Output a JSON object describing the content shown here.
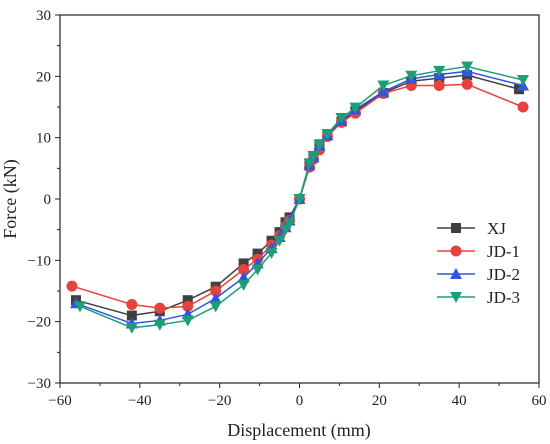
{
  "chart_data": {
    "type": "line",
    "title": "",
    "xlabel": "Displacement (mm)",
    "ylabel": "Force (kN)",
    "xlim": [
      -60,
      60
    ],
    "ylim": [
      -30,
      30
    ],
    "xticks": [
      -60,
      -40,
      -20,
      0,
      20,
      40,
      60
    ],
    "yticks": [
      -30,
      -20,
      -10,
      0,
      10,
      20,
      30
    ],
    "grid": false,
    "legend_position": "right-center",
    "series": [
      {
        "name": "XJ",
        "color": "#404040",
        "marker": "square",
        "points": [
          [
            -56,
            -16.5
          ],
          [
            -42,
            -19
          ],
          [
            -35,
            -18.3
          ],
          [
            -28,
            -16.5
          ],
          [
            -21,
            -14.3
          ],
          [
            -14,
            -10.5
          ],
          [
            -10.5,
            -8.9
          ],
          [
            -7,
            -6.8
          ],
          [
            -5,
            -5.4
          ],
          [
            -3.5,
            -3.8
          ],
          [
            -2.5,
            -3
          ],
          [
            0,
            0
          ],
          [
            2.5,
            5.8
          ],
          [
            3.5,
            7
          ],
          [
            5,
            8.9
          ],
          [
            7,
            10.5
          ],
          [
            10.5,
            12.6
          ],
          [
            14,
            14.3
          ],
          [
            21,
            17.3
          ],
          [
            28,
            19.2
          ],
          [
            35,
            19.7
          ],
          [
            42,
            20.2
          ],
          [
            55,
            17.9
          ]
        ]
      },
      {
        "name": "JD-1",
        "color": "#e8423f",
        "marker": "circle",
        "points": [
          [
            -57,
            -14.2
          ],
          [
            -42,
            -17.2
          ],
          [
            -35,
            -17.8
          ],
          [
            -28,
            -17.5
          ],
          [
            -21,
            -15
          ],
          [
            -14,
            -11.5
          ],
          [
            -10.5,
            -9.8
          ],
          [
            -7,
            -7.5
          ],
          [
            -5,
            -6
          ],
          [
            -3.5,
            -4.5
          ],
          [
            -2.5,
            -3.5
          ],
          [
            0,
            0
          ],
          [
            2.5,
            5.2
          ],
          [
            3.5,
            6.5
          ],
          [
            5,
            8
          ],
          [
            7,
            10.2
          ],
          [
            10.5,
            12.5
          ],
          [
            14,
            14
          ],
          [
            21,
            17.2
          ],
          [
            28,
            18.5
          ],
          [
            35,
            18.5
          ],
          [
            42,
            18.7
          ],
          [
            56,
            15
          ]
        ]
      },
      {
        "name": "JD-2",
        "color": "#2f55e0",
        "marker": "triangle-up",
        "points": [
          [
            -56,
            -17
          ],
          [
            -42,
            -20.3
          ],
          [
            -35,
            -19.8
          ],
          [
            -28,
            -18.8
          ],
          [
            -21,
            -16.2
          ],
          [
            -14,
            -12.8
          ],
          [
            -10.5,
            -10.5
          ],
          [
            -7,
            -8
          ],
          [
            -5,
            -6.2
          ],
          [
            -3.5,
            -4.6
          ],
          [
            -2.5,
            -3.5
          ],
          [
            0,
            0
          ],
          [
            2.5,
            5.5
          ],
          [
            3.5,
            6.8
          ],
          [
            5,
            8.7
          ],
          [
            7,
            10.4
          ],
          [
            10.5,
            12.8
          ],
          [
            14,
            14.6
          ],
          [
            21,
            17.5
          ],
          [
            28,
            19.6
          ],
          [
            35,
            20.3
          ],
          [
            42,
            20.8
          ],
          [
            56,
            18.5
          ]
        ]
      },
      {
        "name": "JD-3",
        "color": "#1e9e78",
        "marker": "triangle-down",
        "points": [
          [
            -55,
            -17.5
          ],
          [
            -42,
            -21
          ],
          [
            -35,
            -20.5
          ],
          [
            -28,
            -19.8
          ],
          [
            -21,
            -17.5
          ],
          [
            -14,
            -14
          ],
          [
            -10.5,
            -11.5
          ],
          [
            -7,
            -8.8
          ],
          [
            -5,
            -6.8
          ],
          [
            -3.5,
            -5
          ],
          [
            -2.5,
            -4
          ],
          [
            0,
            0
          ],
          [
            2.5,
            5.8
          ],
          [
            3.5,
            7
          ],
          [
            5,
            8.8
          ],
          [
            7,
            10.6
          ],
          [
            10.5,
            13.2
          ],
          [
            14,
            14.9
          ],
          [
            21,
            18.5
          ],
          [
            28,
            20.1
          ],
          [
            35,
            20.9
          ],
          [
            42,
            21.6
          ],
          [
            56,
            19.4
          ]
        ]
      }
    ]
  }
}
